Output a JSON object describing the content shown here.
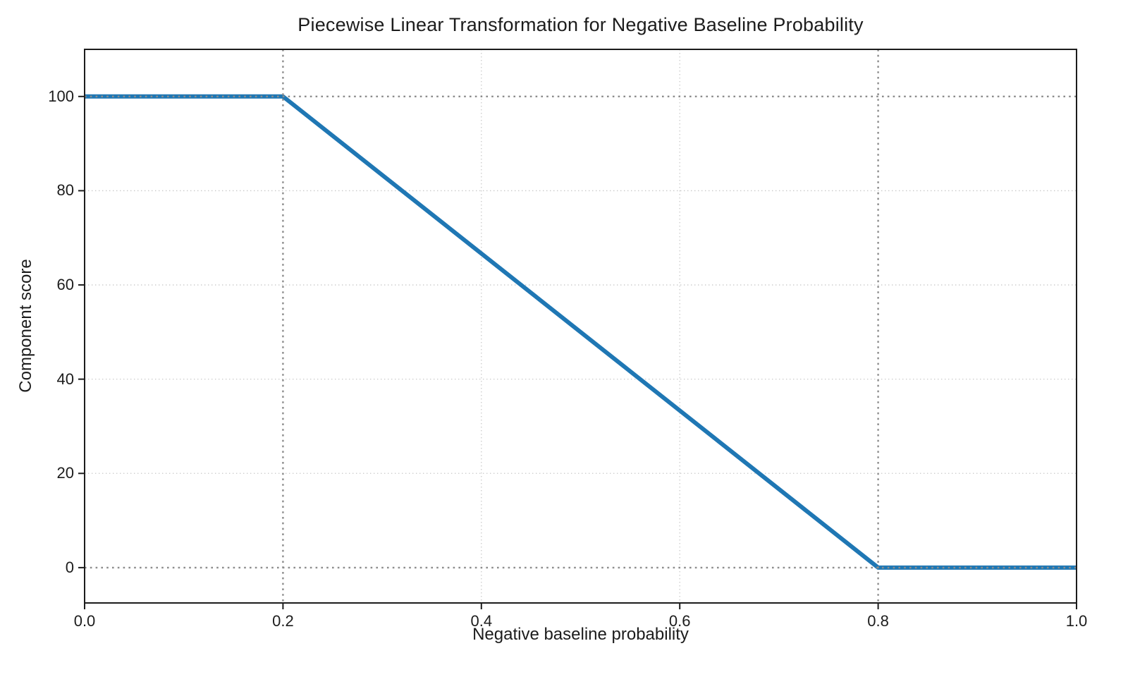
{
  "figure": {
    "background": "#ffffff",
    "axis_color": "#1c1c1c",
    "text_color": "#1c1c1c"
  },
  "chart_data": {
    "type": "line",
    "title": "Piecewise Linear Transformation for Negative Baseline Probability",
    "xlabel": "Negative baseline probability",
    "ylabel": "Component score",
    "xlim": [
      0.0,
      1.0
    ],
    "ylim": [
      -7.5,
      110.0
    ],
    "xticks": [
      {
        "value": 0.0,
        "label": "0.0"
      },
      {
        "value": 0.2,
        "label": "0.2"
      },
      {
        "value": 0.4,
        "label": "0.4"
      },
      {
        "value": 0.6,
        "label": "0.6"
      },
      {
        "value": 0.8,
        "label": "0.8"
      },
      {
        "value": 1.0,
        "label": "1.0"
      }
    ],
    "yticks": [
      {
        "value": 0,
        "label": "0"
      },
      {
        "value": 20,
        "label": "20"
      },
      {
        "value": 40,
        "label": "40"
      },
      {
        "value": 60,
        "label": "60"
      },
      {
        "value": 80,
        "label": "80"
      },
      {
        "value": 100,
        "label": "100"
      }
    ],
    "series": [
      {
        "name": "component-score-line",
        "color": "#1f77b4",
        "linewidth": 6,
        "points": [
          [
            0.0,
            100
          ],
          [
            0.2,
            100
          ],
          [
            0.8,
            0
          ],
          [
            1.0,
            0
          ]
        ]
      }
    ],
    "grid": {
      "light": {
        "vertical_x": [
          0.4,
          0.6
        ],
        "horizontal_y": [
          20,
          40,
          60,
          80
        ],
        "color": "#c8c8c8",
        "style": "dotted"
      },
      "emphasis": {
        "vertical_x": [
          0.2,
          0.8
        ],
        "horizontal_y": [
          0,
          100
        ],
        "color": "#8c8c8c",
        "style": "dotted"
      }
    },
    "legend": null,
    "grid_on": true
  }
}
